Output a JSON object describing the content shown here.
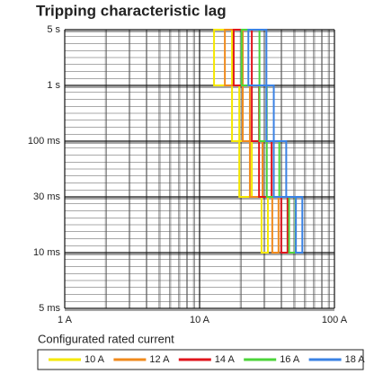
{
  "chart_data": {
    "type": "line",
    "title": "Tripping characteristic lag",
    "legend_title": "Configurated rated current",
    "xscale": "log",
    "xlim": [
      1,
      100
    ],
    "xticks": [
      {
        "value": 1,
        "label": "1 A"
      },
      {
        "value": 10,
        "label": "10 A"
      },
      {
        "value": 100,
        "label": "100 A"
      }
    ],
    "yscale": "log",
    "ylim": [
      0.005,
      5
    ],
    "yticks": [
      {
        "value": 5,
        "label": "5 s"
      },
      {
        "value": 1,
        "label": "1 s"
      },
      {
        "value": 0.1,
        "label": "100 ms"
      },
      {
        "value": 0.03,
        "label": "30 ms"
      },
      {
        "value": 0.01,
        "label": "10 ms"
      },
      {
        "value": 0.005,
        "label": "5 ms"
      }
    ],
    "grid": true,
    "legend": "bottom",
    "series": [
      {
        "name": "10 A",
        "color": "#f5e800",
        "x": [
          12.8,
          12.8,
          17.4,
          17.4,
          19.7,
          19.7,
          28.8,
          28.8,
          32.1,
          32.1,
          24.4,
          24.4,
          19.7,
          19.7,
          17.4,
          17.4
        ],
        "values": [
          5,
          1,
          1,
          0.1,
          0.1,
          0.03,
          0.03,
          0.01,
          0.01,
          0.03,
          0.03,
          0.1,
          0.1,
          1,
          1,
          5
        ]
      },
      {
        "name": "12 A",
        "color": "#f08a1c",
        "x": [
          15.4,
          15.4,
          20.9,
          20.9,
          23.6,
          23.6,
          34.6,
          34.6,
          38.5,
          38.5,
          29.3,
          29.3,
          23.6,
          23.6,
          20.9,
          20.9
        ],
        "values": [
          5,
          1,
          1,
          0.1,
          0.1,
          0.03,
          0.03,
          0.01,
          0.01,
          0.03,
          0.03,
          0.1,
          0.1,
          1,
          1,
          5
        ]
      },
      {
        "name": "14 A",
        "color": "#e0141c",
        "x": [
          17.9,
          17.9,
          24.4,
          24.4,
          27.6,
          27.6,
          40.3,
          40.3,
          44.9,
          44.9,
          34.2,
          34.2,
          27.6,
          27.6,
          24.4,
          24.4
        ],
        "values": [
          5,
          1,
          1,
          0.1,
          0.1,
          0.03,
          0.03,
          0.01,
          0.01,
          0.03,
          0.03,
          0.1,
          0.1,
          1,
          1,
          5
        ]
      },
      {
        "name": "16 A",
        "color": "#4cd43a",
        "x": [
          20.5,
          20.5,
          27.8,
          27.8,
          31.5,
          31.5,
          46.1,
          46.1,
          51.4,
          51.4,
          39.0,
          39.0,
          31.5,
          31.5,
          27.8,
          27.8
        ],
        "values": [
          5,
          1,
          1,
          0.1,
          0.1,
          0.03,
          0.03,
          0.01,
          0.01,
          0.03,
          0.03,
          0.1,
          0.1,
          1,
          1,
          5
        ]
      },
      {
        "name": "18 A",
        "color": "#3a82e4",
        "x": [
          23.0,
          23.0,
          31.3,
          31.3,
          35.5,
          35.5,
          51.8,
          51.8,
          57.8,
          57.8,
          43.9,
          43.9,
          35.5,
          35.5,
          31.3,
          31.3
        ],
        "values": [
          5,
          1,
          1,
          0.1,
          0.1,
          0.03,
          0.03,
          0.01,
          0.01,
          0.03,
          0.03,
          0.1,
          0.1,
          1,
          1,
          5
        ]
      }
    ]
  }
}
